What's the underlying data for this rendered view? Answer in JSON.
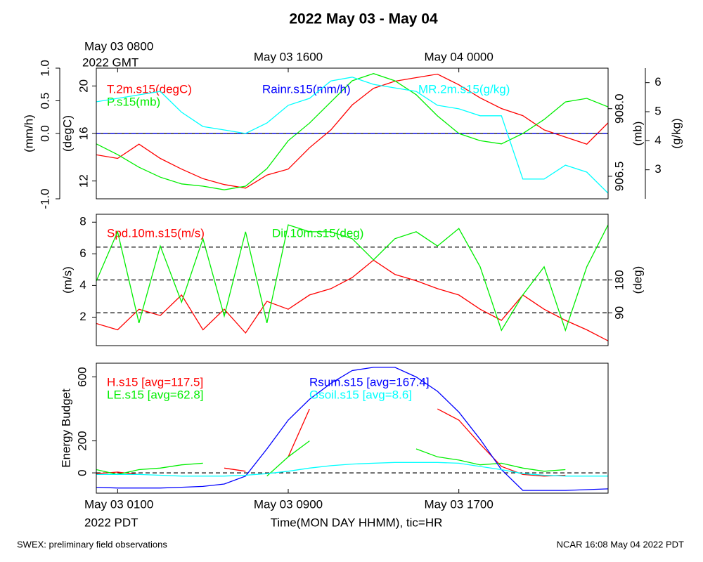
{
  "title": "2022 May 03 - May 04",
  "footer_left": "SWEX: preliminary field observations",
  "footer_right": "NCAR 16:08 May 04 2022 PDT",
  "chart_data": [
    {
      "type": "line",
      "x": [
        0,
        1,
        2,
        3,
        4,
        5,
        6,
        7,
        8,
        9,
        10,
        11,
        12,
        13,
        14,
        15,
        16,
        17,
        18,
        19,
        20,
        21,
        22,
        23,
        24
      ],
      "xlim": [
        0,
        24
      ],
      "x2ticks": [
        {
          "value": 1,
          "label": "May 03 0800"
        },
        {
          "value": 9,
          "label": "May 03 1600"
        },
        {
          "value": 17,
          "label": "May 04 0000"
        }
      ],
      "x2label": "2022 GMT",
      "y_axes": [
        {
          "label": "(mm/h)",
          "lim": [
            -1,
            1
          ],
          "ticks": [
            {
              "value": -1,
              "label": "-1.0"
            },
            {
              "value": 0,
              "label": "0.0"
            },
            0.5,
            {
              "value": 1,
              "label": "1.0"
            }
          ]
        },
        {
          "label": "(degC)",
          "lim": [
            10.5,
            21.5
          ],
          "ticks": [
            12,
            16,
            20
          ]
        },
        {
          "label": "(mb)",
          "lim": [
            906.0,
            908.9
          ],
          "ticks": [
            906.5,
            {
              "value": 908,
              "label": "908.0"
            }
          ]
        },
        {
          "label": "(g/kg)",
          "lim": [
            2,
            6.5
          ],
          "ticks": [
            3,
            4,
            5,
            6
          ]
        }
      ],
      "ref_lines": [
        {
          "axis": 0,
          "value": 0,
          "dash": false
        }
      ],
      "series": [
        {
          "name": "T.2m.s15(degC)",
          "color": "#ff0000",
          "axis": 1,
          "values": [
            14.2,
            13.9,
            15.1,
            13.9,
            13.0,
            12.2,
            11.7,
            11.4,
            12.5,
            13.0,
            14.8,
            16.3,
            18.4,
            19.8,
            20.4,
            20.7,
            21.0,
            20.1,
            19.0,
            18.1,
            17.5,
            16.3,
            15.7,
            15.1,
            16.9
          ]
        },
        {
          "name": "P.s15(mb)",
          "color": "#00ee00",
          "axis": 2,
          "values": [
            907.22,
            906.98,
            906.7,
            906.48,
            906.33,
            906.28,
            906.2,
            906.28,
            906.67,
            907.29,
            907.68,
            908.15,
            908.62,
            908.78,
            908.62,
            908.31,
            907.84,
            907.45,
            907.29,
            907.22,
            907.45,
            907.76,
            908.15,
            908.23,
            908.04
          ]
        },
        {
          "name": "Rainr.s15(mm/h)",
          "color": "#0000ff",
          "axis": 0,
          "dash": true,
          "values": [
            0,
            0,
            0,
            0,
            0,
            0,
            0,
            0,
            0,
            0,
            0,
            0,
            0,
            0,
            0,
            0,
            0,
            0,
            0,
            0,
            0,
            0,
            0,
            0,
            0
          ]
        },
        {
          "name": "MR.2m.s15(g/kg)",
          "color": "#00ffff",
          "axis": 3,
          "values": [
            5.34,
            5.46,
            5.58,
            5.7,
            4.98,
            4.49,
            4.37,
            4.25,
            4.61,
            5.22,
            5.46,
            6.06,
            6.19,
            5.94,
            5.82,
            5.7,
            5.22,
            5.1,
            4.86,
            4.86,
            2.68,
            2.68,
            3.16,
            2.92,
            2.19
          ]
        }
      ]
    },
    {
      "type": "line",
      "x": [
        0,
        1,
        2,
        3,
        4,
        5,
        6,
        7,
        8,
        9,
        10,
        11,
        12,
        13,
        14,
        15,
        16,
        17,
        18,
        19,
        20,
        21,
        22,
        23,
        24
      ],
      "xlim": [
        0,
        24
      ],
      "y_axes": [
        {
          "label": "(m/s)",
          "lim": [
            0.2,
            8.5
          ],
          "ticks": [
            2,
            4,
            6,
            8
          ]
        },
        {
          "label": "(deg)",
          "lim": [
            0,
            360
          ],
          "ticks": [
            90,
            180
          ]
        }
      ],
      "ref_lines": [
        {
          "axis": 1,
          "value": 90,
          "dash": true
        },
        {
          "axis": 1,
          "value": 180,
          "dash": true
        },
        {
          "axis": 1,
          "value": 270,
          "dash": true
        }
      ],
      "series": [
        {
          "name": "Spd.10m.s15(m/s)",
          "color": "#ff0000",
          "axis": 0,
          "values": [
            1.6,
            1.2,
            2.5,
            2.1,
            3.4,
            1.2,
            2.5,
            1.0,
            3.0,
            2.5,
            3.4,
            3.8,
            4.5,
            5.6,
            4.7,
            4.3,
            3.8,
            3.4,
            2.5,
            1.8,
            3.4,
            2.5,
            1.8,
            1.2,
            0.5
          ]
        },
        {
          "name": "Dir.10m.s15(deg)",
          "color": "#00ee00",
          "axis": 1,
          "values": [
            177,
            312,
            62,
            273,
            119,
            293,
            81,
            312,
            62,
            331,
            312,
            312,
            293,
            235,
            293,
            312,
            273,
            321,
            216,
            42,
            139,
            216,
            42,
            216,
            331
          ]
        }
      ]
    },
    {
      "type": "line",
      "x": [
        0,
        1,
        2,
        3,
        4,
        5,
        6,
        7,
        8,
        9,
        10,
        11,
        12,
        13,
        14,
        15,
        16,
        17,
        18,
        19,
        20,
        21,
        22,
        23,
        24
      ],
      "xlim": [
        0,
        24
      ],
      "xticks": [
        {
          "value": 1,
          "label": "May 03 0100"
        },
        {
          "value": 9,
          "label": "May 03 0900"
        },
        {
          "value": 17,
          "label": "May 03 1700"
        }
      ],
      "xlabel": "Time(MON DAY HHMM), tic=HR",
      "xlabel_note": "2022 PDT",
      "y_axes": [
        {
          "label": "Energy Budget",
          "lim": [
            -127,
            686
          ],
          "ticks": [
            0,
            200,
            600
          ]
        }
      ],
      "ref_lines": [
        {
          "axis": 0,
          "value": 0,
          "dash": true
        }
      ],
      "series": [
        {
          "name": "H.s15 [avg=117.5]",
          "color": "#ff0000",
          "axis": 0,
          "values": [
            -5,
            5,
            -10,
            null,
            -20,
            null,
            30,
            10,
            null,
            100,
            400,
            null,
            null,
            null,
            null,
            null,
            400,
            330,
            180,
            40,
            -10,
            -20,
            -15,
            null,
            null
          ]
        },
        {
          "name": "LE.s15 [avg=62.8]",
          "color": "#00ee00",
          "axis": 0,
          "values": [
            20,
            -10,
            20,
            30,
            50,
            60,
            null,
            null,
            -20,
            100,
            200,
            null,
            null,
            null,
            null,
            150,
            100,
            80,
            50,
            60,
            30,
            10,
            20,
            null,
            null
          ]
        },
        {
          "name": "Rsum.s15 [avg=167.4]",
          "color": "#0000ff",
          "axis": 0,
          "values": [
            -90,
            -95,
            -95,
            -95,
            -90,
            -85,
            -70,
            -20,
            150,
            330,
            460,
            560,
            640,
            660,
            660,
            600,
            510,
            380,
            210,
            20,
            -110,
            -110,
            -110,
            -105,
            -100
          ]
        },
        {
          "name": "Gsoil.s15 [avg=8.6]",
          "color": "#00ffff",
          "axis": 0,
          "values": [
            -10,
            -10,
            -10,
            -15,
            -20,
            -20,
            -20,
            -15,
            -5,
            10,
            30,
            45,
            55,
            60,
            65,
            65,
            65,
            60,
            40,
            20,
            -5,
            -15,
            -20,
            -20,
            -20
          ]
        }
      ]
    }
  ]
}
